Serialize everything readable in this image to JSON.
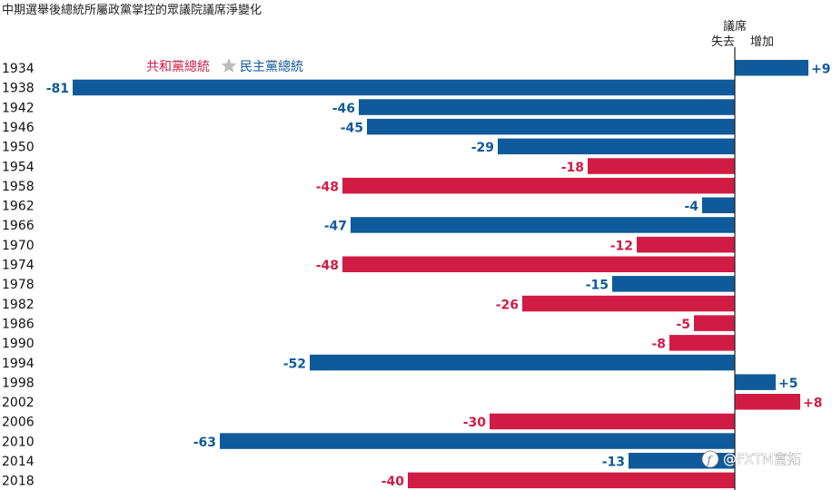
{
  "chart_data": {
    "type": "bar",
    "orientation": "horizontal",
    "title": "中期選舉後總統所屬政黨掌控的眾議院議席淨變化",
    "axis_caption_top": "議席",
    "axis_caption_left": "失去",
    "axis_caption_right": "增加",
    "legend": {
      "republican": "共和黨總統",
      "democrat": "民主黨總統",
      "separator_icon": "star-icon",
      "placement": "top-left"
    },
    "colors": {
      "republican": "#d01c45",
      "democrat": "#0f5a9a"
    },
    "xlim": [
      -81,
      9
    ],
    "categories": [
      "1934",
      "1938",
      "1942",
      "1946",
      "1950",
      "1954",
      "1958",
      "1962",
      "1966",
      "1970",
      "1974",
      "1978",
      "1982",
      "1986",
      "1990",
      "1994",
      "1998",
      "2002",
      "2006",
      "2010",
      "2014",
      "2018"
    ],
    "values": [
      9,
      -81,
      -46,
      -45,
      -29,
      -18,
      -48,
      -4,
      -47,
      -12,
      -48,
      -15,
      -26,
      -5,
      -8,
      -52,
      5,
      8,
      -30,
      -63,
      -13,
      -40
    ],
    "labels": [
      "+9",
      "-81",
      "-46",
      "-45",
      "-29",
      "-18",
      "-48",
      "-4",
      "-47",
      "-12",
      "-48",
      "-15",
      "-26",
      "-5",
      "-8",
      "-52",
      "+5",
      "+8",
      "-30",
      "-63",
      "-13",
      "-40"
    ],
    "party": [
      "D",
      "D",
      "D",
      "D",
      "D",
      "R",
      "R",
      "D",
      "D",
      "R",
      "R",
      "D",
      "R",
      "R",
      "R",
      "D",
      "D",
      "R",
      "R",
      "D",
      "D",
      "R"
    ]
  },
  "watermark": "@FXTM富拓",
  "watermark_icon": "facebook-icon"
}
